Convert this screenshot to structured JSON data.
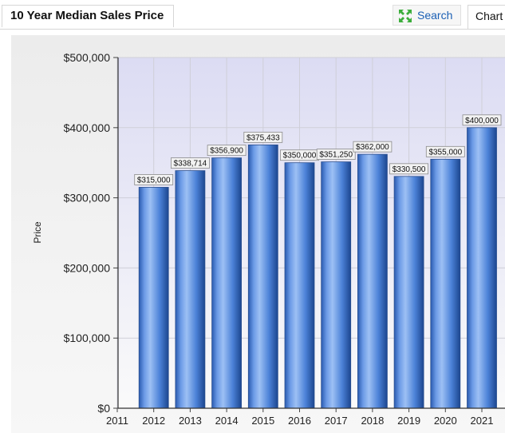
{
  "header": {
    "title": "10 Year Median Sales Price",
    "search_label": "Search",
    "chart_tab_label": "Chart"
  },
  "icons": {
    "search": "expand-arrows-icon"
  },
  "colors": {
    "bar_light": "#8fb6f0",
    "bar_mid": "#3f78d0",
    "bar_dark": "#1f4e9a",
    "plot_bg_top": "#e1e1f5"
  },
  "chart_data": {
    "type": "bar",
    "title": "",
    "xlabel": "",
    "ylabel": "Price",
    "categories": [
      "2012",
      "2013",
      "2014",
      "2015",
      "2016",
      "2017",
      "2018",
      "2019",
      "2020",
      "2021"
    ],
    "x_axis_labels": [
      "2011",
      "2012",
      "2013",
      "2014",
      "2015",
      "2016",
      "2017",
      "2018",
      "2019",
      "2020",
      "2021"
    ],
    "values": [
      315000,
      338714,
      356900,
      375433,
      350000,
      351250,
      362000,
      330500,
      355000,
      400000
    ],
    "data_labels": [
      "$315,000",
      "$338,714",
      "$356,900",
      "$375,433",
      "$350,000",
      "$351,250",
      "$362,000",
      "$330,500",
      "$355,000",
      "$400,000"
    ],
    "y_ticks": [
      "$0",
      "$100,000",
      "$200,000",
      "$300,000",
      "$400,000",
      "$500,000"
    ],
    "ylim": [
      0,
      500000
    ],
    "grid": true,
    "legend": "none"
  }
}
